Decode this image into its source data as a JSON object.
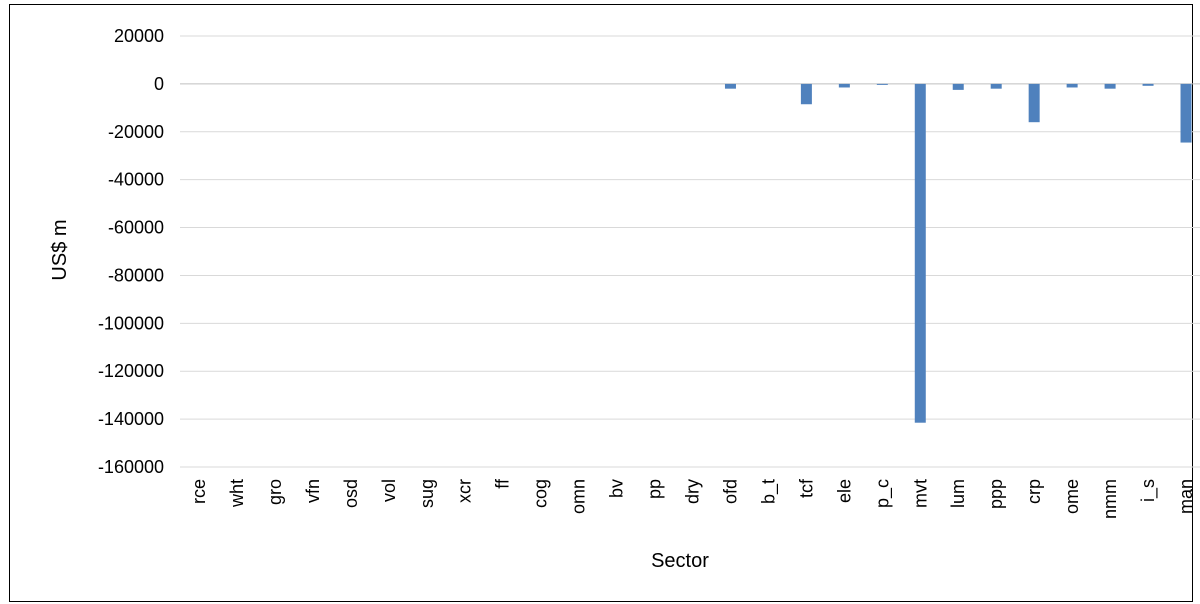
{
  "chart_data": {
    "type": "bar",
    "title": "",
    "xlabel": "Sector",
    "ylabel": "US$ m",
    "categories": [
      "rce",
      "wht",
      "gro",
      "vfn",
      "osd",
      "vol",
      "sug",
      "xcr",
      "ff",
      "cog",
      "omn",
      "bv",
      "pp",
      "dry",
      "ofd",
      "b_t",
      "tcf",
      "ele",
      "p_c",
      "mvt",
      "lum",
      "ppp",
      "crp",
      "ome",
      "nmm",
      "i_s",
      "man"
    ],
    "values": [
      0,
      0,
      0,
      0,
      0,
      0,
      0,
      0,
      0,
      0,
      0,
      0,
      0,
      0,
      -2000,
      0,
      -8500,
      -1500,
      -200,
      -141500,
      -2500,
      -2000,
      -16000,
      -1500,
      -2000,
      -800,
      -24500
    ],
    "ylim": [
      -160000,
      20000
    ],
    "yticks": [
      20000,
      0,
      -20000,
      -40000,
      -60000,
      -80000,
      -100000,
      -120000,
      -140000,
      -160000
    ],
    "grid": true,
    "legend": "none",
    "bar_color": "#4f81bd",
    "grid_color": "#d9d9d9"
  }
}
